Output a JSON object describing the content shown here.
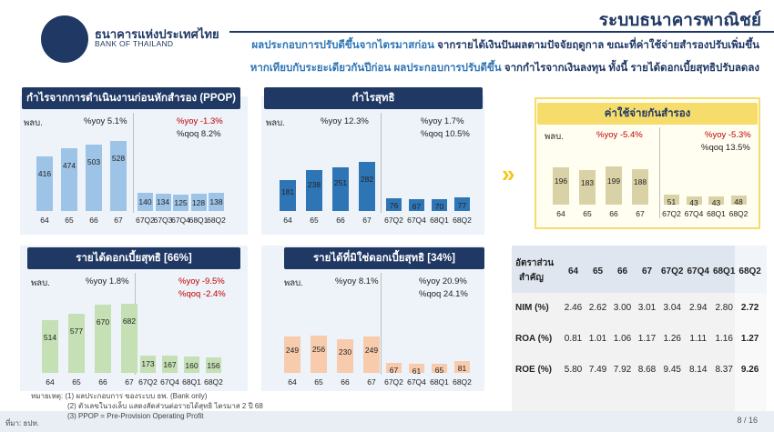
{
  "header": {
    "logo_th": "ธนาคารแห่งประเทศไทย",
    "logo_en": "BANK OF THAILAND",
    "page_title": "ระบบธนาคารพาณิชย์",
    "summary_line1_a": "ผลประกอบการปรับดีขึ้นจากไตรมาสก่อน",
    "summary_line1_b": " จากรายได้เงินปันผลตามปัจจัยฤดูกาล ขณะที่ค่าใช้จ่ายสำรองปรับเพิ่มขึ้น",
    "summary_line2_a": "หากเทียบกับระยะเดียวกันปีก่อน ผลประกอบการปรับดีขึ้น",
    "summary_line2_b": " จากกำไรจากเงินลงทุน ทั้งนี้ รายได้ดอกเบี้ยสุทธิปรับลดลง"
  },
  "colors": {
    "navy": "#1f3864",
    "light_blue": "#9dc3e6",
    "blue": "#2e75b6",
    "khaki": "#d9d2a6",
    "green": "#c5e0b4",
    "peach": "#f8cbad",
    "red": "#c00000",
    "yellow": "#f5dc6b"
  },
  "chart_data": [
    {
      "type": "bar",
      "title": "กำไรจากการดำเนินงานก่อนหักสำรอง (PPOP)",
      "unit": "พลบ.",
      "annual": {
        "categories": [
          "64",
          "65",
          "66",
          "67"
        ],
        "values": [
          416,
          474,
          503,
          528
        ],
        "yoy": "%yoy 5.1%"
      },
      "quarterly": {
        "categories": [
          "67Q2",
          "67Q3",
          "67Q4",
          "68Q1",
          "68Q2"
        ],
        "values": [
          140,
          134,
          125,
          128,
          138
        ],
        "yoy": "%yoy -1.3%",
        "qoq": "%qoq 8.2%"
      }
    },
    {
      "type": "bar",
      "title": "กำไรสุทธิ",
      "unit": "พลบ.",
      "annual": {
        "categories": [
          "64",
          "65",
          "66",
          "67"
        ],
        "values": [
          181,
          238,
          251,
          282
        ],
        "yoy": "%yoy 12.3%"
      },
      "quarterly": {
        "categories": [
          "67Q2",
          "67Q4",
          "68Q1",
          "68Q2"
        ],
        "values": [
          76,
          67,
          70,
          77
        ],
        "yoy": "%yoy 1.7%",
        "qoq": "%qoq 10.5%"
      }
    },
    {
      "type": "bar",
      "title": "ค่าใช้จ่ายกันสำรอง",
      "unit": "พลบ.",
      "annual": {
        "categories": [
          "64",
          "65",
          "66",
          "67"
        ],
        "values": [
          196,
          183,
          199,
          188
        ],
        "yoy": "%yoy -5.4%"
      },
      "quarterly": {
        "categories": [
          "67Q2",
          "67Q4",
          "68Q1",
          "68Q2"
        ],
        "values": [
          51,
          43,
          43,
          48
        ],
        "yoy": "%yoy -5.3%",
        "qoq": "%qoq 13.5%"
      }
    },
    {
      "type": "bar",
      "title": "รายได้ดอกเบี้ยสุทธิ [66%]",
      "unit": "พลบ.",
      "annual": {
        "categories": [
          "64",
          "65",
          "66",
          "67"
        ],
        "values": [
          514,
          577,
          670,
          682
        ],
        "yoy": "%yoy 1.8%"
      },
      "quarterly": {
        "categories": [
          "67Q2",
          "67Q4",
          "68Q1",
          "68Q2"
        ],
        "values": [
          173,
          167,
          160,
          156
        ],
        "yoy": "%yoy -9.5%",
        "qoq": "%qoq -2.4%"
      }
    },
    {
      "type": "bar",
      "title": "รายได้ที่มิใช่ดอกเบี้ยสุทธิ [34%]",
      "unit": "พลบ.",
      "annual": {
        "categories": [
          "64",
          "65",
          "66",
          "67"
        ],
        "values": [
          249,
          256,
          230,
          249
        ],
        "yoy": "%yoy 8.1%"
      },
      "quarterly": {
        "categories": [
          "67Q2",
          "67Q4",
          "68Q1",
          "68Q2"
        ],
        "values": [
          67,
          61,
          65,
          81
        ],
        "yoy": "%yoy 20.9%",
        "qoq": "%qoq 24.1%"
      }
    }
  ],
  "ratios": {
    "header_label_1": "อัตราส่วน",
    "header_label_2": "สำคัญ",
    "columns": [
      "64",
      "65",
      "66",
      "67",
      "67Q2",
      "67Q4",
      "68Q1",
      "68Q2"
    ],
    "rows": [
      {
        "name": "NIM (%)",
        "values": [
          "2.46",
          "2.62",
          "3.00",
          "3.01",
          "3.04",
          "2.94",
          "2.80",
          "2.72"
        ]
      },
      {
        "name": "ROA (%)",
        "values": [
          "0.81",
          "1.01",
          "1.06",
          "1.17",
          "1.26",
          "1.11",
          "1.16",
          "1.27"
        ]
      },
      {
        "name": "ROE (%)",
        "values": [
          "5.80",
          "7.49",
          "7.92",
          "8.68",
          "9.45",
          "8.14",
          "8.37",
          "9.26"
        ]
      }
    ]
  },
  "notes": {
    "line1": "หมายเหตุ: (1) ผลประกอบการ ของระบบ ธพ. (Bank only)",
    "line2": "(2) ตัวเลขในวงเล็บ แสดงสัดส่วนต่อรายได้สุทธิ ไตรมาส 2 ปี 68",
    "line3": "(3) PPOP = Pre-Provision Operating Profit",
    "source": "ที่มา: ธปท.",
    "page": "8 / 16"
  }
}
